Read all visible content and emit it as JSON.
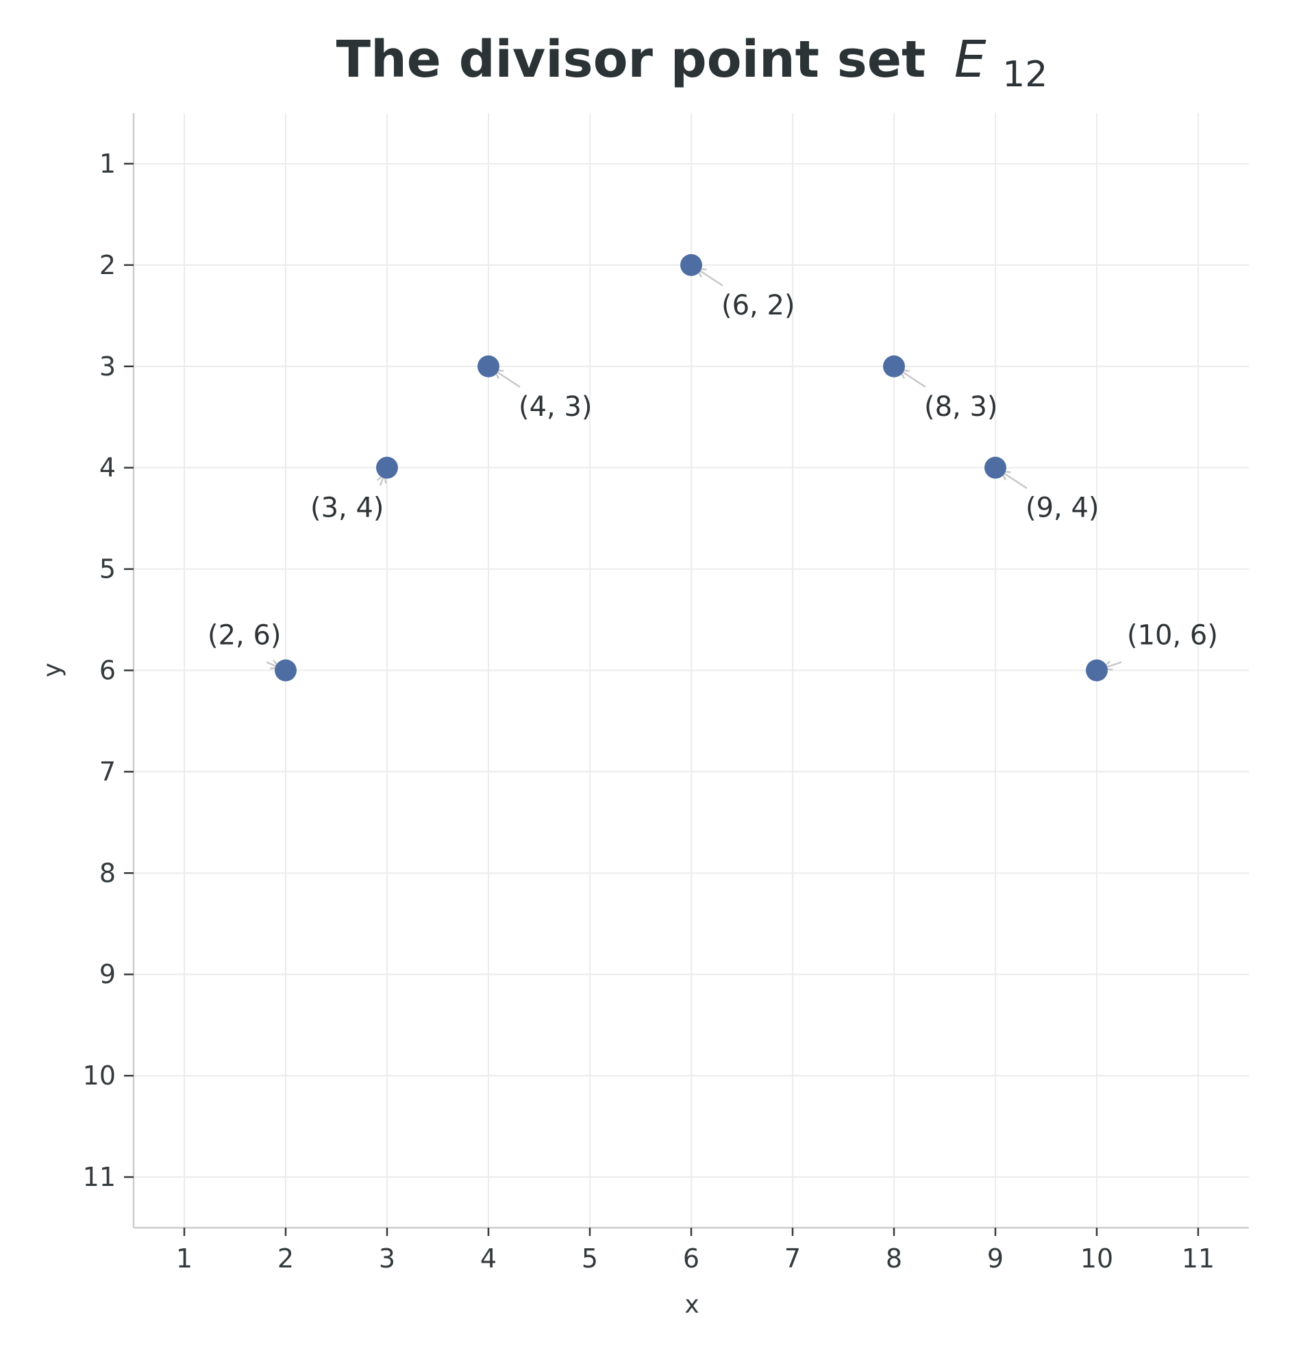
{
  "chart_data": {
    "type": "scatter",
    "title": "The divisor point set",
    "title_math": "E",
    "title_subscript": "12",
    "xlabel": "x",
    "ylabel": "y",
    "xlim": [
      0.5,
      11.5
    ],
    "ylim": [
      0.5,
      11.5
    ],
    "y_inverted": true,
    "grid": true,
    "x_ticks": [
      1,
      2,
      3,
      4,
      5,
      6,
      7,
      8,
      9,
      10,
      11
    ],
    "y_ticks": [
      1,
      2,
      3,
      4,
      5,
      6,
      7,
      8,
      9,
      10,
      11
    ],
    "point_color": "#4e6ea3",
    "points": [
      {
        "x": 2,
        "y": 6,
        "label": "(2, 6)",
        "label_pos": "upper-left"
      },
      {
        "x": 3,
        "y": 4,
        "label": "(3, 4)",
        "label_pos": "lower-left"
      },
      {
        "x": 4,
        "y": 3,
        "label": "(4, 3)",
        "label_pos": "lower-right"
      },
      {
        "x": 6,
        "y": 2,
        "label": "(6, 2)",
        "label_pos": "lower-right"
      },
      {
        "x": 8,
        "y": 3,
        "label": "(8, 3)",
        "label_pos": "lower-right"
      },
      {
        "x": 9,
        "y": 4,
        "label": "(9, 4)",
        "label_pos": "lower-right"
      },
      {
        "x": 10,
        "y": 6,
        "label": "(10, 6)",
        "label_pos": "upper-right"
      }
    ]
  }
}
